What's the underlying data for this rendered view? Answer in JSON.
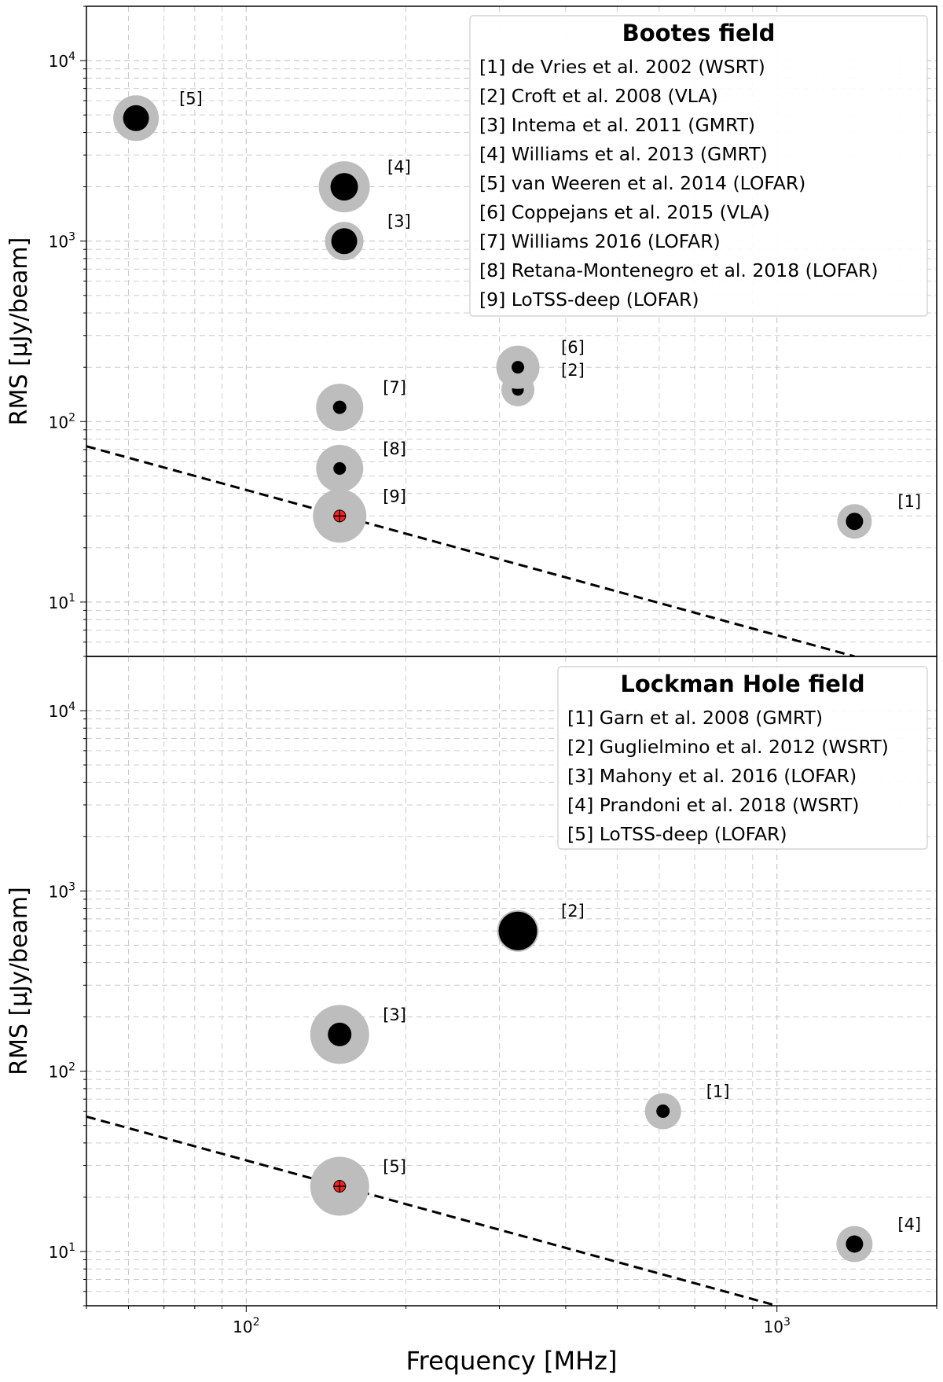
{
  "figure": {
    "xlabel": "Frequency [MHz]",
    "x_tick_labels": [
      {
        "base": "10",
        "exp": "2"
      },
      {
        "base": "10",
        "exp": "3"
      }
    ],
    "y_tick_labels": [
      {
        "base": "10",
        "exp": "1"
      },
      {
        "base": "10",
        "exp": "2"
      },
      {
        "base": "10",
        "exp": "3"
      },
      {
        "base": "10",
        "exp": "4"
      }
    ]
  },
  "colors": {
    "point": "#000000",
    "halo": "#bdbdbd",
    "highlight": "#ff2020",
    "grid": "#c8c8c8",
    "fit_line": "#000000"
  },
  "chart_data": [
    {
      "type": "scatter",
      "name": "bootes-panel",
      "legend_title": "Bootes field",
      "legend_entries": [
        "[1] de Vries et al. 2002 (WSRT)",
        "[2] Croft et al. 2008 (VLA)",
        "[3] Intema et al. 2011 (GMRT)",
        "[4] Williams et al. 2013 (GMRT)",
        "[5] van Weeren et al. 2014 (LOFAR)",
        "[6] Coppejans et al. 2015 (VLA)",
        "[7] Williams 2016 (LOFAR)",
        "[8] Retana-Montenegro et al. 2018 (LOFAR)",
        "[9] LoTSS-deep (LOFAR)"
      ],
      "legend_loc": "upper right",
      "ylabel": "RMS [μJy/beam]",
      "xscale": "log",
      "yscale": "log",
      "xlim": [
        50,
        2000
      ],
      "ylim": [
        5,
        20000
      ],
      "grid": true,
      "points": [
        {
          "label": "[1]",
          "x": 1400,
          "y": 28,
          "size": 22,
          "halo": 44,
          "highlight": false
        },
        {
          "label": "[2]",
          "x": 325,
          "y": 150,
          "size": 15,
          "halo": 42,
          "highlight": false
        },
        {
          "label": "[3]",
          "x": 153,
          "y": 1000,
          "size": 33,
          "halo": 49,
          "highlight": false
        },
        {
          "label": "[4]",
          "x": 153,
          "y": 2000,
          "size": 35,
          "halo": 65,
          "highlight": false
        },
        {
          "label": "[5]",
          "x": 62,
          "y": 4800,
          "size": 33,
          "halo": 58,
          "highlight": false
        },
        {
          "label": "[6]",
          "x": 325,
          "y": 200,
          "size": 16,
          "halo": 55,
          "highlight": false
        },
        {
          "label": "[7]",
          "x": 150,
          "y": 120,
          "size": 17,
          "halo": 60,
          "highlight": false
        },
        {
          "label": "[8]",
          "x": 150,
          "y": 55,
          "size": 16,
          "halo": 60,
          "highlight": false
        },
        {
          "label": "[9]",
          "x": 150,
          "y": 30,
          "size": 16,
          "halo": 68,
          "highlight": true
        }
      ],
      "fit_line": {
        "style": "dashed",
        "points": [
          [
            50,
            73
          ],
          [
            1400,
            5
          ]
        ]
      }
    },
    {
      "type": "scatter",
      "name": "lockman-panel",
      "legend_title": "Lockman Hole field",
      "legend_entries": [
        "[1] Garn et al. 2008 (GMRT)",
        "[2] Guglielmino et al. 2012 (WSRT)",
        "[3] Mahony et al. 2016 (LOFAR)",
        "[4] Prandoni et al. 2018 (WSRT)",
        "[5] LoTSS-deep (LOFAR)"
      ],
      "legend_loc": "upper right",
      "ylabel": "RMS [μJy/beam]",
      "xscale": "log",
      "yscale": "log",
      "xlim": [
        50,
        2000
      ],
      "ylim": [
        5,
        20000
      ],
      "grid": true,
      "points": [
        {
          "label": "[1]",
          "x": 610,
          "y": 60,
          "size": 17,
          "halo": 46,
          "highlight": false
        },
        {
          "label": "[2]",
          "x": 325,
          "y": 600,
          "size": 49,
          "halo": 53,
          "highlight": false
        },
        {
          "label": "[3]",
          "x": 150,
          "y": 160,
          "size": 30,
          "halo": 75,
          "highlight": false
        },
        {
          "label": "[4]",
          "x": 1400,
          "y": 11,
          "size": 22,
          "halo": 46,
          "highlight": false
        },
        {
          "label": "[5]",
          "x": 150,
          "y": 23,
          "size": 16,
          "halo": 75,
          "highlight": true
        }
      ],
      "fit_line": {
        "style": "dashed",
        "points": [
          [
            50,
            56
          ],
          [
            1000,
            5
          ]
        ]
      }
    }
  ]
}
